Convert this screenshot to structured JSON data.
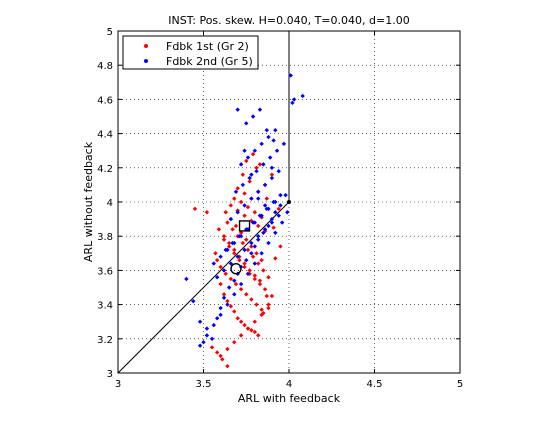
{
  "chart_data": {
    "type": "scatter",
    "title": "INST: Pos. skew. H=0.040, T=0.040, d=1.00",
    "xlabel": "ARL with feedback",
    "ylabel": "ARL without feedback",
    "xlim": [
      3,
      5
    ],
    "ylim": [
      3,
      5
    ],
    "xticks": [
      3,
      3.5,
      4,
      4.5,
      5
    ],
    "yticks": [
      3,
      3.2,
      3.4,
      3.6,
      3.8,
      4,
      4.2,
      4.4,
      4.6,
      4.8,
      5
    ],
    "grid": true,
    "grid_style": "dotted",
    "legend_position": "top-left",
    "reference_lines": {
      "diagonal": {
        "from": [
          3,
          3
        ],
        "to": [
          4,
          4
        ],
        "color": "#000000"
      },
      "vertical": {
        "from": [
          4,
          4
        ],
        "to": [
          4,
          5
        ],
        "color": "#000000"
      }
    },
    "series": [
      {
        "name": "Fdbk 1st  (Gr 2)",
        "color": "#ff0000",
        "marker": "dot",
        "mean_marker": {
          "shape": "circle",
          "x": 3.69,
          "y": 3.61
        },
        "x": [
          3.45,
          3.52,
          3.58,
          3.6,
          3.62,
          3.64,
          3.66,
          3.68,
          3.7,
          3.72,
          3.74,
          3.76,
          3.78,
          3.8,
          3.82,
          3.85,
          3.88,
          3.9,
          3.57,
          3.6,
          3.63,
          3.66,
          3.69,
          3.72,
          3.75,
          3.78,
          3.81,
          3.84,
          3.87,
          3.62,
          3.65,
          3.68,
          3.71,
          3.74,
          3.77,
          3.8,
          3.83,
          3.86,
          3.59,
          3.62,
          3.65,
          3.68,
          3.71,
          3.74,
          3.77,
          3.8,
          3.83,
          3.64,
          3.67,
          3.7,
          3.73,
          3.76,
          3.79,
          3.82,
          3.85,
          3.88,
          3.63,
          3.66,
          3.69,
          3.72,
          3.75,
          3.78,
          3.81,
          3.84,
          3.6,
          3.64,
          3.68,
          3.72,
          3.76,
          3.8,
          3.84,
          3.88,
          3.92,
          3.66,
          3.7,
          3.74,
          3.78,
          3.82,
          3.86,
          3.68,
          3.72,
          3.76,
          3.8,
          3.84,
          3.7,
          3.74,
          3.78,
          3.82,
          3.86,
          3.9,
          3.94,
          3.73,
          3.77,
          3.81,
          3.75,
          3.79,
          3.83,
          3.87,
          3.91,
          3.95,
          3.55,
          3.58,
          3.61,
          3.64
        ],
        "y": [
          3.96,
          3.94,
          3.66,
          3.52,
          3.46,
          3.42,
          3.39,
          3.36,
          3.32,
          3.3,
          3.28,
          3.26,
          3.25,
          3.24,
          3.22,
          3.35,
          3.4,
          3.45,
          3.7,
          3.62,
          3.58,
          3.55,
          3.52,
          3.49,
          3.46,
          3.43,
          3.4,
          3.37,
          3.45,
          3.78,
          3.74,
          3.7,
          3.66,
          3.62,
          3.58,
          3.55,
          3.52,
          3.49,
          3.84,
          3.8,
          3.76,
          3.72,
          3.68,
          3.64,
          3.6,
          3.57,
          3.54,
          3.88,
          3.84,
          3.8,
          3.76,
          3.72,
          3.68,
          3.64,
          3.6,
          3.56,
          3.94,
          3.9,
          3.86,
          3.82,
          3.78,
          3.74,
          3.7,
          3.66,
          3.1,
          3.14,
          3.18,
          3.22,
          3.26,
          3.3,
          3.34,
          3.38,
          3.67,
          3.98,
          3.95,
          3.92,
          3.89,
          3.86,
          3.83,
          4.02,
          4.0,
          3.97,
          3.94,
          3.91,
          4.08,
          4.05,
          4.02,
          4.06,
          4.1,
          4.16,
          3.96,
          4.16,
          4.12,
          4.2,
          4.24,
          4.28,
          4.22,
          4.02,
          3.85,
          3.74,
          3.15,
          3.12,
          3.08,
          3.04
        ]
      },
      {
        "name": "Fdbk 2nd (Gr 5)",
        "color": "#0000ff",
        "marker": "dot",
        "mean_marker": {
          "shape": "square",
          "x": 3.74,
          "y": 3.86
        },
        "x": [
          3.4,
          3.44,
          3.48,
          3.5,
          3.52,
          3.55,
          3.58,
          3.6,
          3.62,
          3.65,
          3.68,
          3.7,
          3.72,
          3.75,
          3.78,
          3.8,
          3.82,
          3.85,
          3.88,
          3.9,
          3.92,
          3.95,
          3.98,
          4.01,
          4.02,
          4.08,
          3.56,
          3.6,
          3.64,
          3.68,
          3.72,
          3.76,
          3.8,
          3.84,
          3.88,
          3.92,
          3.58,
          3.62,
          3.66,
          3.7,
          3.74,
          3.78,
          3.82,
          3.86,
          3.9,
          3.94,
          3.63,
          3.67,
          3.71,
          3.75,
          3.79,
          3.83,
          3.87,
          3.91,
          3.95,
          3.66,
          3.7,
          3.74,
          3.78,
          3.82,
          3.86,
          3.9,
          3.94,
          3.69,
          3.73,
          3.77,
          3.81,
          3.85,
          3.89,
          3.93,
          3.97,
          3.72,
          3.76,
          3.8,
          3.84,
          3.88,
          3.92,
          3.75,
          3.79,
          3.83,
          3.87,
          3.91,
          3.7,
          3.74,
          3.78,
          3.82,
          3.86,
          3.9,
          3.48,
          3.52,
          3.56,
          3.6,
          3.64,
          3.68,
          3.72,
          3.76,
          3.8,
          3.84,
          3.88,
          3.92,
          3.96,
          3.99,
          4.03
        ],
        "y": [
          3.55,
          3.42,
          3.16,
          3.18,
          3.26,
          3.2,
          3.32,
          3.38,
          3.44,
          3.5,
          3.54,
          3.58,
          3.62,
          3.66,
          3.7,
          3.74,
          3.78,
          3.82,
          3.86,
          3.9,
          3.94,
          3.98,
          4.04,
          4.74,
          4.58,
          4.62,
          3.64,
          3.68,
          3.72,
          3.76,
          3.8,
          3.84,
          3.88,
          3.92,
          3.96,
          4.0,
          3.56,
          3.6,
          3.64,
          3.68,
          3.72,
          3.76,
          3.8,
          3.84,
          3.88,
          3.92,
          3.72,
          3.76,
          3.8,
          3.84,
          3.88,
          3.92,
          3.96,
          4.0,
          4.04,
          3.9,
          3.94,
          3.98,
          4.02,
          4.06,
          4.1,
          4.14,
          4.18,
          4.06,
          4.1,
          4.14,
          4.18,
          4.22,
          4.26,
          4.3,
          4.34,
          4.22,
          4.26,
          4.3,
          4.34,
          4.38,
          4.42,
          4.46,
          4.5,
          4.54,
          4.42,
          4.36,
          4.54,
          4.3,
          4.16,
          4.02,
          3.98,
          4.2,
          3.3,
          3.22,
          3.28,
          3.34,
          3.4,
          3.46,
          3.52,
          3.58,
          3.64,
          3.7,
          3.76,
          3.82,
          3.88,
          3.94,
          4.6
        ]
      }
    ]
  }
}
